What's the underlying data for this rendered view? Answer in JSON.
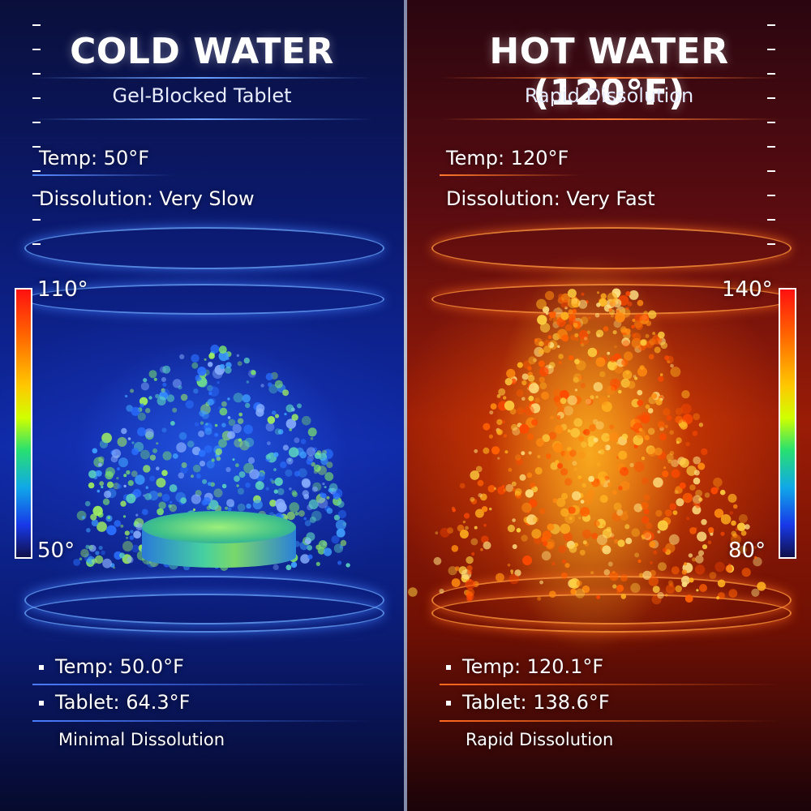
{
  "cold": {
    "title": "COLD WATER",
    "subtitle": "Gel-Blocked Tablet",
    "temp_line": "Temp: 50°F",
    "dissolution_line": "Dissolution: Very Slow",
    "scale_max": "110°",
    "scale_min": "50°",
    "reading_temp": "Temp: 50.0°F",
    "reading_tablet": "Tablet: 64.3°F",
    "footnote": "Minimal Dissolution",
    "accent": "#3a7bff"
  },
  "hot": {
    "title": "HOT WATER (120°F)",
    "subtitle": "Rapid Dissolution",
    "temp_line": "Temp: 120°F",
    "dissolution_line": "Dissolution: Very Fast",
    "scale_max": "140°",
    "scale_min": "80°",
    "reading_temp": "Temp: 120.1°F",
    "reading_tablet": "Tablet: 138.6°F",
    "footnote": "Rapid Dissolution",
    "accent": "#ff6a1a"
  }
}
